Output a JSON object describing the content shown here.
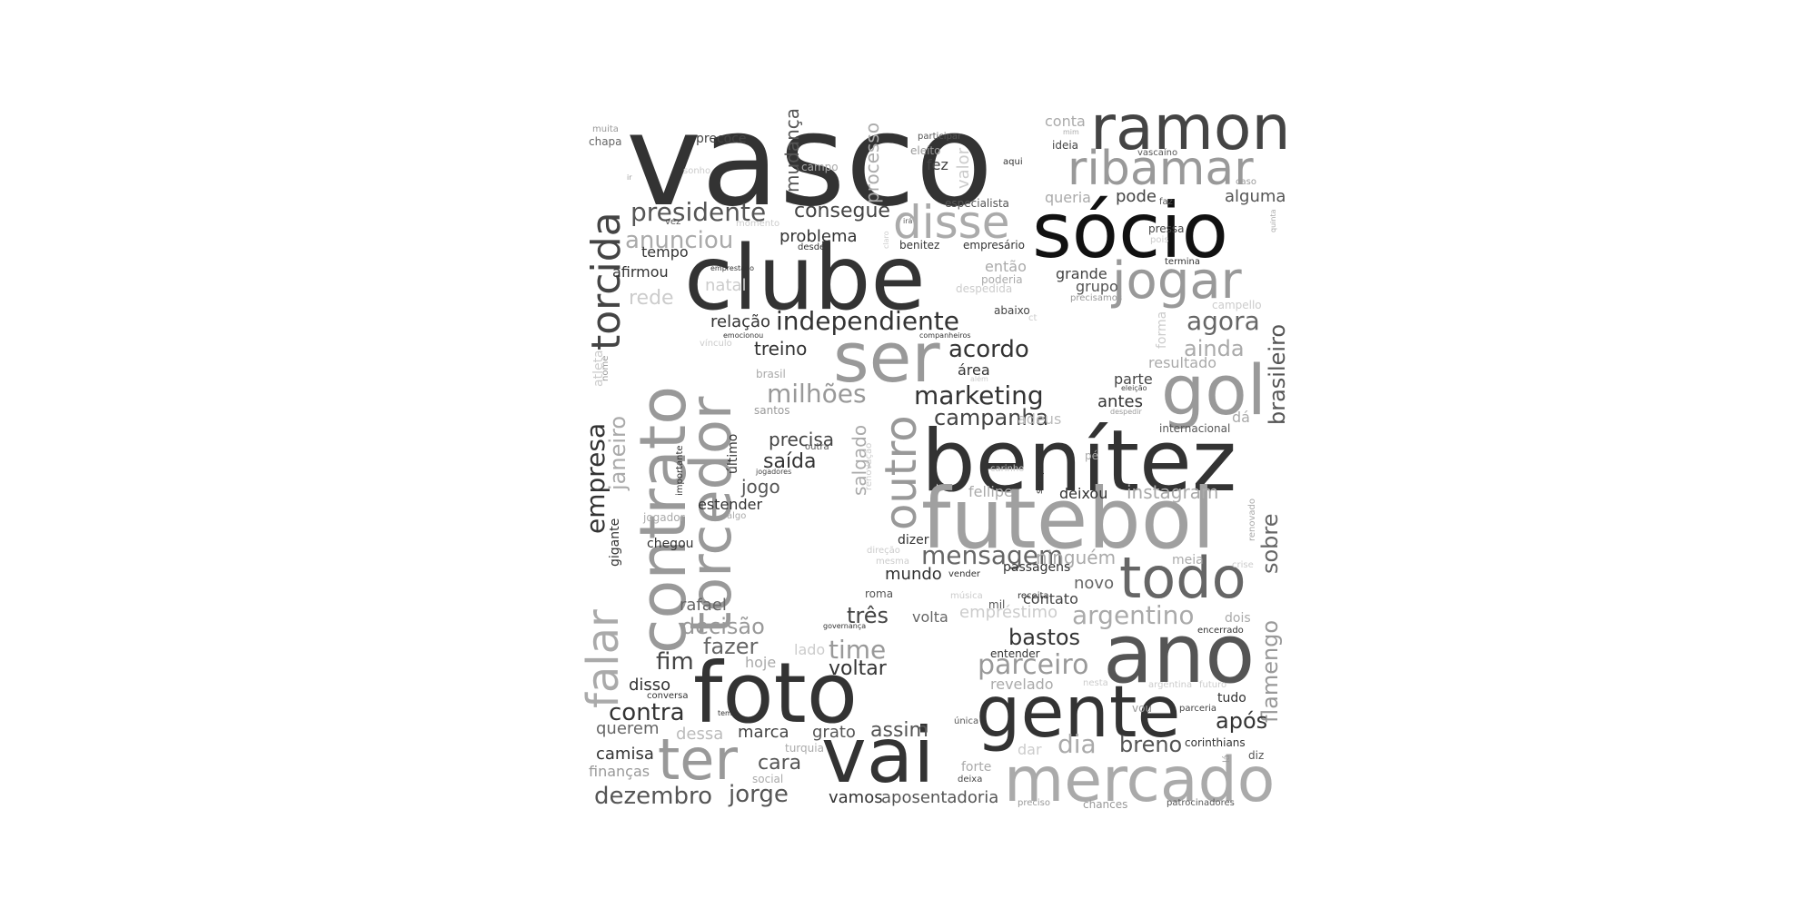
{
  "word_cloud": {
    "words": [
      {
        "text": "vasco",
        "color": "#333333"
      },
      {
        "text": "ramon",
        "color": "#444444"
      },
      {
        "text": "ribamar",
        "color": "#999999"
      },
      {
        "text": "sócio",
        "color": "#111111"
      },
      {
        "text": "clube",
        "color": "#333333"
      },
      {
        "text": "jogar",
        "color": "#999999"
      },
      {
        "text": "disse",
        "color": "#aaaaaa"
      },
      {
        "text": "ser",
        "color": "#999999"
      },
      {
        "text": "gol",
        "color": "#999999"
      },
      {
        "text": "benítez",
        "color": "#333333"
      },
      {
        "text": "futebol",
        "color": "#a0a0a0"
      },
      {
        "text": "todo",
        "color": "#666666"
      },
      {
        "text": "ano",
        "color": "#555555"
      },
      {
        "text": "foto",
        "color": "#333333"
      },
      {
        "text": "gente",
        "color": "#333333"
      },
      {
        "text": "vai",
        "color": "#333333"
      },
      {
        "text": "mercado",
        "color": "#aaaaaa"
      },
      {
        "text": "ter",
        "color": "#999999"
      },
      {
        "text": "contrato",
        "color": "#999999"
      },
      {
        "text": "torcedor",
        "color": "#999999"
      },
      {
        "text": "torcida",
        "color": "#444444"
      },
      {
        "text": "falar",
        "color": "#aaaaaa"
      },
      {
        "text": "outro",
        "color": "#999999"
      },
      {
        "text": "presidente",
        "color": "#555555"
      },
      {
        "text": "consegue",
        "color": "#444444"
      },
      {
        "text": "anunciou",
        "color": "#aaaaaa"
      },
      {
        "text": "independiente",
        "color": "#333333"
      },
      {
        "text": "milhões",
        "color": "#999999"
      },
      {
        "text": "marketing",
        "color": "#333333"
      },
      {
        "text": "campanha",
        "color": "#444444"
      },
      {
        "text": "acordo",
        "color": "#333333"
      },
      {
        "text": "agora",
        "color": "#666666"
      },
      {
        "text": "ainda",
        "color": "#aaaaaa"
      },
      {
        "text": "brasileiro",
        "color": "#555555"
      },
      {
        "text": "mensagem",
        "color": "#666666"
      },
      {
        "text": "argentino",
        "color": "#aaaaaa"
      },
      {
        "text": "parceiro",
        "color": "#999999"
      },
      {
        "text": "bastos",
        "color": "#333333"
      },
      {
        "text": "flamengo",
        "color": "#999999"
      },
      {
        "text": "sobre",
        "color": "#666666"
      },
      {
        "text": "empresa",
        "color": "#333333"
      },
      {
        "text": "janeiro",
        "color": "#aaaaaa"
      },
      {
        "text": "mudança",
        "color": "#555555"
      },
      {
        "text": "processo",
        "color": "#aaaaaa"
      },
      {
        "text": "dezembro",
        "color": "#555555"
      },
      {
        "text": "jorge",
        "color": "#555555"
      },
      {
        "text": "decisão",
        "color": "#999999"
      },
      {
        "text": "fazer",
        "color": "#666666"
      },
      {
        "text": "fim",
        "color": "#444444"
      },
      {
        "text": "contra",
        "color": "#333333"
      },
      {
        "text": "time",
        "color": "#999999"
      },
      {
        "text": "voltar",
        "color": "#333333"
      },
      {
        "text": "três",
        "color": "#444444"
      },
      {
        "text": "breno",
        "color": "#555555"
      },
      {
        "text": "dia",
        "color": "#aaaaaa"
      },
      {
        "text": "após",
        "color": "#333333"
      },
      {
        "text": "assim",
        "color": "#555555"
      },
      {
        "text": "cara",
        "color": "#555555"
      },
      {
        "text": "marca",
        "color": "#444444"
      },
      {
        "text": "grato",
        "color": "#555555"
      },
      {
        "text": "vamos",
        "color": "#333333"
      },
      {
        "text": "aposentadoria",
        "color": "#555555"
      },
      {
        "text": "camisa",
        "color": "#333333"
      },
      {
        "text": "finanças",
        "color": "#999999"
      },
      {
        "text": "querem",
        "color": "#666666"
      },
      {
        "text": "dessa",
        "color": "#bbbbbb"
      },
      {
        "text": "disso",
        "color": "#333333"
      },
      {
        "text": "rafael",
        "color": "#666666"
      },
      {
        "text": "hoje",
        "color": "#aaaaaa"
      },
      {
        "text": "lado",
        "color": "#cccccc"
      },
      {
        "text": "mundo",
        "color": "#333333"
      },
      {
        "text": "volta",
        "color": "#666666"
      },
      {
        "text": "empréstimo",
        "color": "#cccccc"
      },
      {
        "text": "contato",
        "color": "#444444"
      },
      {
        "text": "novo",
        "color": "#666666"
      },
      {
        "text": "ninguém",
        "color": "#aaaaaa"
      },
      {
        "text": "passagens",
        "color": "#333333"
      },
      {
        "text": "dizer",
        "color": "#333333"
      },
      {
        "text": "deixou",
        "color": "#333333"
      },
      {
        "text": "instagram",
        "color": "#aaaaaa"
      },
      {
        "text": "fellipe",
        "color": "#aaaaaa"
      },
      {
        "text": "saída",
        "color": "#333333"
      },
      {
        "text": "jogo",
        "color": "#555555"
      },
      {
        "text": "estender",
        "color": "#333333"
      },
      {
        "text": "precisa",
        "color": "#444444"
      },
      {
        "text": "salgado",
        "color": "#aaaaaa"
      },
      {
        "text": "treino",
        "color": "#333333"
      },
      {
        "text": "relação",
        "color": "#333333"
      },
      {
        "text": "problema",
        "color": "#333333"
      },
      {
        "text": "tempo",
        "color": "#333333"
      },
      {
        "text": "afirmou",
        "color": "#333333"
      },
      {
        "text": "rede",
        "color": "#cccccc"
      },
      {
        "text": "natal",
        "color": "#cccccc"
      },
      {
        "text": "área",
        "color": "#333333"
      },
      {
        "text": "antes",
        "color": "#333333"
      },
      {
        "text": "parte",
        "color": "#444444"
      },
      {
        "text": "adeus",
        "color": "#bbbbbb"
      },
      {
        "text": "internacional",
        "color": "#555555"
      },
      {
        "text": "dá",
        "color": "#aaaaaa"
      },
      {
        "text": "resultado",
        "color": "#aaaaaa"
      },
      {
        "text": "grande",
        "color": "#444444"
      },
      {
        "text": "grupo",
        "color": "#555555"
      },
      {
        "text": "então",
        "color": "#aaaaaa"
      },
      {
        "text": "poderia",
        "color": "#aaaaaa"
      },
      {
        "text": "abaixo",
        "color": "#444444"
      },
      {
        "text": "queria",
        "color": "#aaaaaa"
      },
      {
        "text": "pode",
        "color": "#444444"
      },
      {
        "text": "alguma",
        "color": "#555555"
      },
      {
        "text": "pressa",
        "color": "#444444"
      },
      {
        "text": "conta",
        "color": "#aaaaaa"
      },
      {
        "text": "ideia",
        "color": "#444444"
      },
      {
        "text": "fez",
        "color": "#444444"
      },
      {
        "text": "valor",
        "color": "#cccccc"
      },
      {
        "text": "precoce",
        "color": "#444444"
      },
      {
        "text": "chapa",
        "color": "#666666"
      },
      {
        "text": "muita",
        "color": "#999999"
      },
      {
        "text": "campo",
        "color": "#aaaaaa"
      },
      {
        "text": "especialista",
        "color": "#555555"
      },
      {
        "text": "empresário",
        "color": "#333333"
      },
      {
        "text": "benitez",
        "color": "#333333"
      },
      {
        "text": "desde",
        "color": "#333333"
      },
      {
        "text": "participar",
        "color": "#555555"
      },
      {
        "text": "eleito",
        "color": "#999999"
      },
      {
        "text": "aqui",
        "color": "#333333"
      },
      {
        "text": "vascaíno",
        "color": "#555555"
      },
      {
        "text": "caso",
        "color": "#999999"
      },
      {
        "text": "termina",
        "color": "#333333"
      },
      {
        "text": "forma",
        "color": "#cccccc"
      },
      {
        "text": "campello",
        "color": "#cccccc"
      },
      {
        "text": "precisamos",
        "color": "#999999"
      },
      {
        "text": "despedida",
        "color": "#cccccc"
      },
      {
        "text": "companheiros",
        "color": "#333333"
      },
      {
        "text": "emocionou",
        "color": "#333333"
      },
      {
        "text": "emprestado",
        "color": "#333333"
      },
      {
        "text": "vez",
        "color": "#555555"
      },
      {
        "text": "momento",
        "color": "#cccccc"
      },
      {
        "text": "sonho",
        "color": "#cccccc"
      },
      {
        "text": "brasil",
        "color": "#aaaaaa"
      },
      {
        "text": "santos",
        "color": "#999999"
      },
      {
        "text": "atleta",
        "color": "#cccccc"
      },
      {
        "text": "nome",
        "color": "#999999"
      },
      {
        "text": "vínculo",
        "color": "#cccccc"
      },
      {
        "text": "último",
        "color": "#333333"
      },
      {
        "text": "importante",
        "color": "#333333"
      },
      {
        "text": "jogadores",
        "color": "#444444"
      },
      {
        "text": "outra",
        "color": "#555555"
      },
      {
        "text": "jogador",
        "color": "#aaaaaa"
      },
      {
        "text": "algo",
        "color": "#aaaaaa"
      },
      {
        "text": "gigante",
        "color": "#333333"
      },
      {
        "text": "chegou",
        "color": "#333333"
      },
      {
        "text": "renovação",
        "color": "#cccccc"
      },
      {
        "text": "carinho",
        "color": "#cccccc"
      },
      {
        "text": "sempre",
        "color": "#333333"
      },
      {
        "text": "pé",
        "color": "#aaaaaa"
      },
      {
        "text": "direção",
        "color": "#cccccc"
      },
      {
        "text": "mesma",
        "color": "#cccccc"
      },
      {
        "text": "vender",
        "color": "#333333"
      },
      {
        "text": "roma",
        "color": "#555555"
      },
      {
        "text": "música",
        "color": "#cccccc"
      },
      {
        "text": "mil",
        "color": "#555555"
      },
      {
        "text": "receita",
        "color": "#333333"
      },
      {
        "text": "meia",
        "color": "#aaaaaa"
      },
      {
        "text": "crise",
        "color": "#cccccc"
      },
      {
        "text": "dois",
        "color": "#aaaaaa"
      },
      {
        "text": "renovado",
        "color": "#aaaaaa"
      },
      {
        "text": "encerrado",
        "color": "#333333"
      },
      {
        "text": "entender",
        "color": "#333333"
      },
      {
        "text": "revelado",
        "color": "#aaaaaa"
      },
      {
        "text": "nesta",
        "color": "#cccccc"
      },
      {
        "text": "argentina",
        "color": "#cccccc"
      },
      {
        "text": "futuro",
        "color": "#cccccc"
      },
      {
        "text": "vou",
        "color": "#999999"
      },
      {
        "text": "parceria",
        "color": "#444444"
      },
      {
        "text": "tudo",
        "color": "#333333"
      },
      {
        "text": "corinthians",
        "color": "#333333"
      },
      {
        "text": "diz",
        "color": "#555555"
      },
      {
        "text": "lá",
        "color": "#999999"
      },
      {
        "text": "única",
        "color": "#555555"
      },
      {
        "text": "dar",
        "color": "#cccccc"
      },
      {
        "text": "forte",
        "color": "#aaaaaa"
      },
      {
        "text": "deixa",
        "color": "#444444"
      },
      {
        "text": "preciso",
        "color": "#999999"
      },
      {
        "text": "chances",
        "color": "#999999"
      },
      {
        "text": "patrocinadores",
        "color": "#555555"
      },
      {
        "text": "conversa",
        "color": "#333333"
      },
      {
        "text": "tema",
        "color": "#333333"
      },
      {
        "text": "turquia",
        "color": "#aaaaaa"
      },
      {
        "text": "social",
        "color": "#aaaaaa"
      },
      {
        "text": "governança",
        "color": "#333333"
      },
      {
        "text": "claro",
        "color": "#cccccc"
      },
      {
        "text": "irá",
        "color": "#555555"
      },
      {
        "text": "mim",
        "color": "#aaaaaa"
      },
      {
        "text": "faz",
        "color": "#555555"
      },
      {
        "text": "pois",
        "color": "#cccccc"
      },
      {
        "text": "quinta",
        "color": "#aaaaaa"
      },
      {
        "text": "ir",
        "color": "#999999"
      },
      {
        "text": "ct",
        "color": "#cccccc"
      },
      {
        "text": "além",
        "color": "#cccccc"
      },
      {
        "text": "eleição",
        "color": "#444444"
      },
      {
        "text": "despedir",
        "color": "#999999"
      }
    ]
  }
}
